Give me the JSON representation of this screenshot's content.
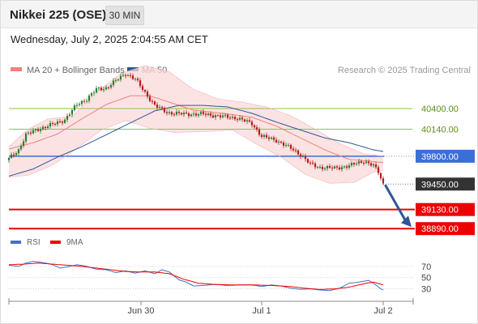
{
  "header": {
    "title": "Nikkei 225 (OSE)",
    "timeframe": "30 MIN"
  },
  "timestamp": "Wednesday, July 2, 2025 2:04:55 AM CET",
  "attribution": "Research © 2025 Trading Central",
  "colors": {
    "bollinger": "#f08080",
    "bollinger_band_fill": "#fbdada",
    "ma50": "#2f5597",
    "candle_up": "#2e7d32",
    "candle_down": "#b71c1c",
    "pivot_line": "#3a6fd8",
    "support_red": "#ee0000",
    "resistance_green": "#8cc63f",
    "rsi": "#4472c4",
    "rsi_ma": "#ee0000",
    "arrow": "#2f5597"
  },
  "chart_data": [
    {
      "type": "candlestick",
      "title": "Nikkei 225 (OSE)",
      "xlabel": "",
      "ylabel": "",
      "x_tick_labels": [
        "Jun 30",
        "Jul 1",
        "Jul 2"
      ],
      "ylim": [
        38760,
        40950
      ],
      "grid": false,
      "legend": {
        "position": "top-left",
        "entries": [
          {
            "name": "MA 20 + Bollinger Bands",
            "color": "#f08080"
          },
          {
            "name": "MA 50",
            "color": "#2f5597"
          }
        ]
      },
      "levels": [
        {
          "value": 40400,
          "label": "40400.00",
          "role": "resistance",
          "color": "#8cc63f"
        },
        {
          "value": 40140,
          "label": "40140.00",
          "role": "resistance",
          "color": "#8cc63f"
        },
        {
          "value": 39800,
          "label": "39800.00",
          "role": "pivot",
          "color": "#3a6fd8"
        },
        {
          "value": 39450,
          "label": "39450.00",
          "role": "last_price",
          "color": "#333333"
        },
        {
          "value": 39130,
          "label": "39130.00",
          "role": "support",
          "color": "#ee0000"
        },
        {
          "value": 38890,
          "label": "38890.00",
          "role": "support",
          "color": "#ee0000"
        }
      ],
      "close_anchors": [
        [
          0,
          39770
        ],
        [
          4,
          39880
        ],
        [
          7,
          40070
        ],
        [
          12,
          40140
        ],
        [
          18,
          40200
        ],
        [
          23,
          40260
        ],
        [
          28,
          40450
        ],
        [
          32,
          40520
        ],
        [
          36,
          40640
        ],
        [
          40,
          40660
        ],
        [
          44,
          40750
        ],
        [
          48,
          40840
        ],
        [
          52,
          40770
        ],
        [
          56,
          40600
        ],
        [
          60,
          40440
        ],
        [
          65,
          40350
        ],
        [
          72,
          40330
        ],
        [
          80,
          40330
        ],
        [
          88,
          40300
        ],
        [
          94,
          40280
        ],
        [
          100,
          40210
        ],
        [
          104,
          40050
        ],
        [
          110,
          40000
        ],
        [
          116,
          39900
        ],
        [
          120,
          39820
        ],
        [
          124,
          39700
        ],
        [
          128,
          39660
        ],
        [
          134,
          39650
        ],
        [
          140,
          39680
        ],
        [
          146,
          39740
        ],
        [
          150,
          39680
        ],
        [
          152,
          39600
        ],
        [
          154,
          39450
        ]
      ],
      "ma20_anchors": [
        [
          0,
          39890
        ],
        [
          10,
          39970
        ],
        [
          20,
          40080
        ],
        [
          30,
          40270
        ],
        [
          40,
          40450
        ],
        [
          50,
          40560
        ],
        [
          58,
          40560
        ],
        [
          66,
          40480
        ],
        [
          76,
          40380
        ],
        [
          88,
          40340
        ],
        [
          100,
          40290
        ],
        [
          110,
          40180
        ],
        [
          120,
          40030
        ],
        [
          130,
          39880
        ],
        [
          140,
          39760
        ],
        [
          148,
          39740
        ],
        [
          154,
          39720
        ]
      ],
      "bollinger_upper_anchors": [
        [
          0,
          39920
        ],
        [
          8,
          40140
        ],
        [
          16,
          40270
        ],
        [
          26,
          40300
        ],
        [
          36,
          40600
        ],
        [
          46,
          40840
        ],
        [
          56,
          40940
        ],
        [
          66,
          40860
        ],
        [
          76,
          40640
        ],
        [
          86,
          40520
        ],
        [
          96,
          40480
        ],
        [
          106,
          40420
        ],
        [
          116,
          40310
        ],
        [
          126,
          40140
        ],
        [
          136,
          39960
        ],
        [
          146,
          39830
        ],
        [
          154,
          39800
        ]
      ],
      "bollinger_lower_anchors": [
        [
          0,
          39540
        ],
        [
          8,
          39560
        ],
        [
          18,
          39690
        ],
        [
          28,
          39900
        ],
        [
          38,
          40130
        ],
        [
          48,
          40250
        ],
        [
          58,
          40150
        ],
        [
          68,
          40100
        ],
        [
          80,
          40110
        ],
        [
          92,
          40130
        ],
        [
          102,
          39950
        ],
        [
          112,
          39790
        ],
        [
          122,
          39570
        ],
        [
          132,
          39460
        ],
        [
          142,
          39470
        ],
        [
          150,
          39600
        ],
        [
          154,
          39620
        ]
      ],
      "ma50_anchors": [
        [
          0,
          39550
        ],
        [
          10,
          39640
        ],
        [
          20,
          39790
        ],
        [
          30,
          39920
        ],
        [
          40,
          40070
        ],
        [
          50,
          40220
        ],
        [
          60,
          40370
        ],
        [
          70,
          40440
        ],
        [
          80,
          40440
        ],
        [
          90,
          40420
        ],
        [
          100,
          40340
        ],
        [
          110,
          40230
        ],
        [
          120,
          40130
        ],
        [
          130,
          40030
        ],
        [
          140,
          39970
        ],
        [
          150,
          39880
        ],
        [
          154,
          39860
        ]
      ]
    },
    {
      "type": "line",
      "title": "",
      "xlabel": "",
      "ylabel": "",
      "ylim": [
        15,
        90
      ],
      "yticks": [
        30,
        50,
        70
      ],
      "legend": {
        "position": "top-left",
        "entries": [
          {
            "name": "RSI",
            "color": "#4472c4"
          },
          {
            "name": "9MA",
            "color": "#ee0000"
          }
        ]
      },
      "series": [
        {
          "name": "RSI",
          "points": [
            [
              0,
              72
            ],
            [
              4,
              70
            ],
            [
              7,
              76
            ],
            [
              10,
              79
            ],
            [
              14,
              77
            ],
            [
              18,
              73
            ],
            [
              21,
              67
            ],
            [
              24,
              69
            ],
            [
              28,
              73
            ],
            [
              32,
              70
            ],
            [
              36,
              65
            ],
            [
              40,
              64
            ],
            [
              44,
              59
            ],
            [
              48,
              62
            ],
            [
              52,
              58
            ],
            [
              56,
              62
            ],
            [
              60,
              57
            ],
            [
              63,
              64
            ],
            [
              66,
              60
            ],
            [
              70,
              46
            ],
            [
              73,
              42
            ],
            [
              76,
              35
            ],
            [
              80,
              36
            ],
            [
              85,
              38
            ],
            [
              90,
              36
            ],
            [
              95,
              37
            ],
            [
              100,
              37
            ],
            [
              104,
              34
            ],
            [
              108,
              37
            ],
            [
              112,
              35
            ],
            [
              116,
              31
            ],
            [
              120,
              29
            ],
            [
              124,
              30
            ],
            [
              128,
              28
            ],
            [
              132,
              27
            ],
            [
              136,
              31
            ],
            [
              140,
              40
            ],
            [
              144,
              42
            ],
            [
              148,
              45
            ],
            [
              151,
              37
            ],
            [
              153,
              30
            ],
            [
              154,
              28
            ]
          ]
        },
        {
          "name": "9MA",
          "points": [
            [
              0,
              73
            ],
            [
              6,
              74
            ],
            [
              12,
              76
            ],
            [
              18,
              74
            ],
            [
              24,
              72
            ],
            [
              30,
              70
            ],
            [
              36,
              67
            ],
            [
              42,
              64
            ],
            [
              48,
              61
            ],
            [
              54,
              60
            ],
            [
              60,
              60
            ],
            [
              66,
              57
            ],
            [
              72,
              47
            ],
            [
              78,
              40
            ],
            [
              84,
              38
            ],
            [
              92,
              37
            ],
            [
              100,
              37
            ],
            [
              108,
              36
            ],
            [
              116,
              34
            ],
            [
              122,
              31
            ],
            [
              128,
              29
            ],
            [
              134,
              30
            ],
            [
              140,
              33
            ],
            [
              146,
              39
            ],
            [
              150,
              42
            ],
            [
              154,
              37
            ]
          ]
        }
      ]
    }
  ]
}
